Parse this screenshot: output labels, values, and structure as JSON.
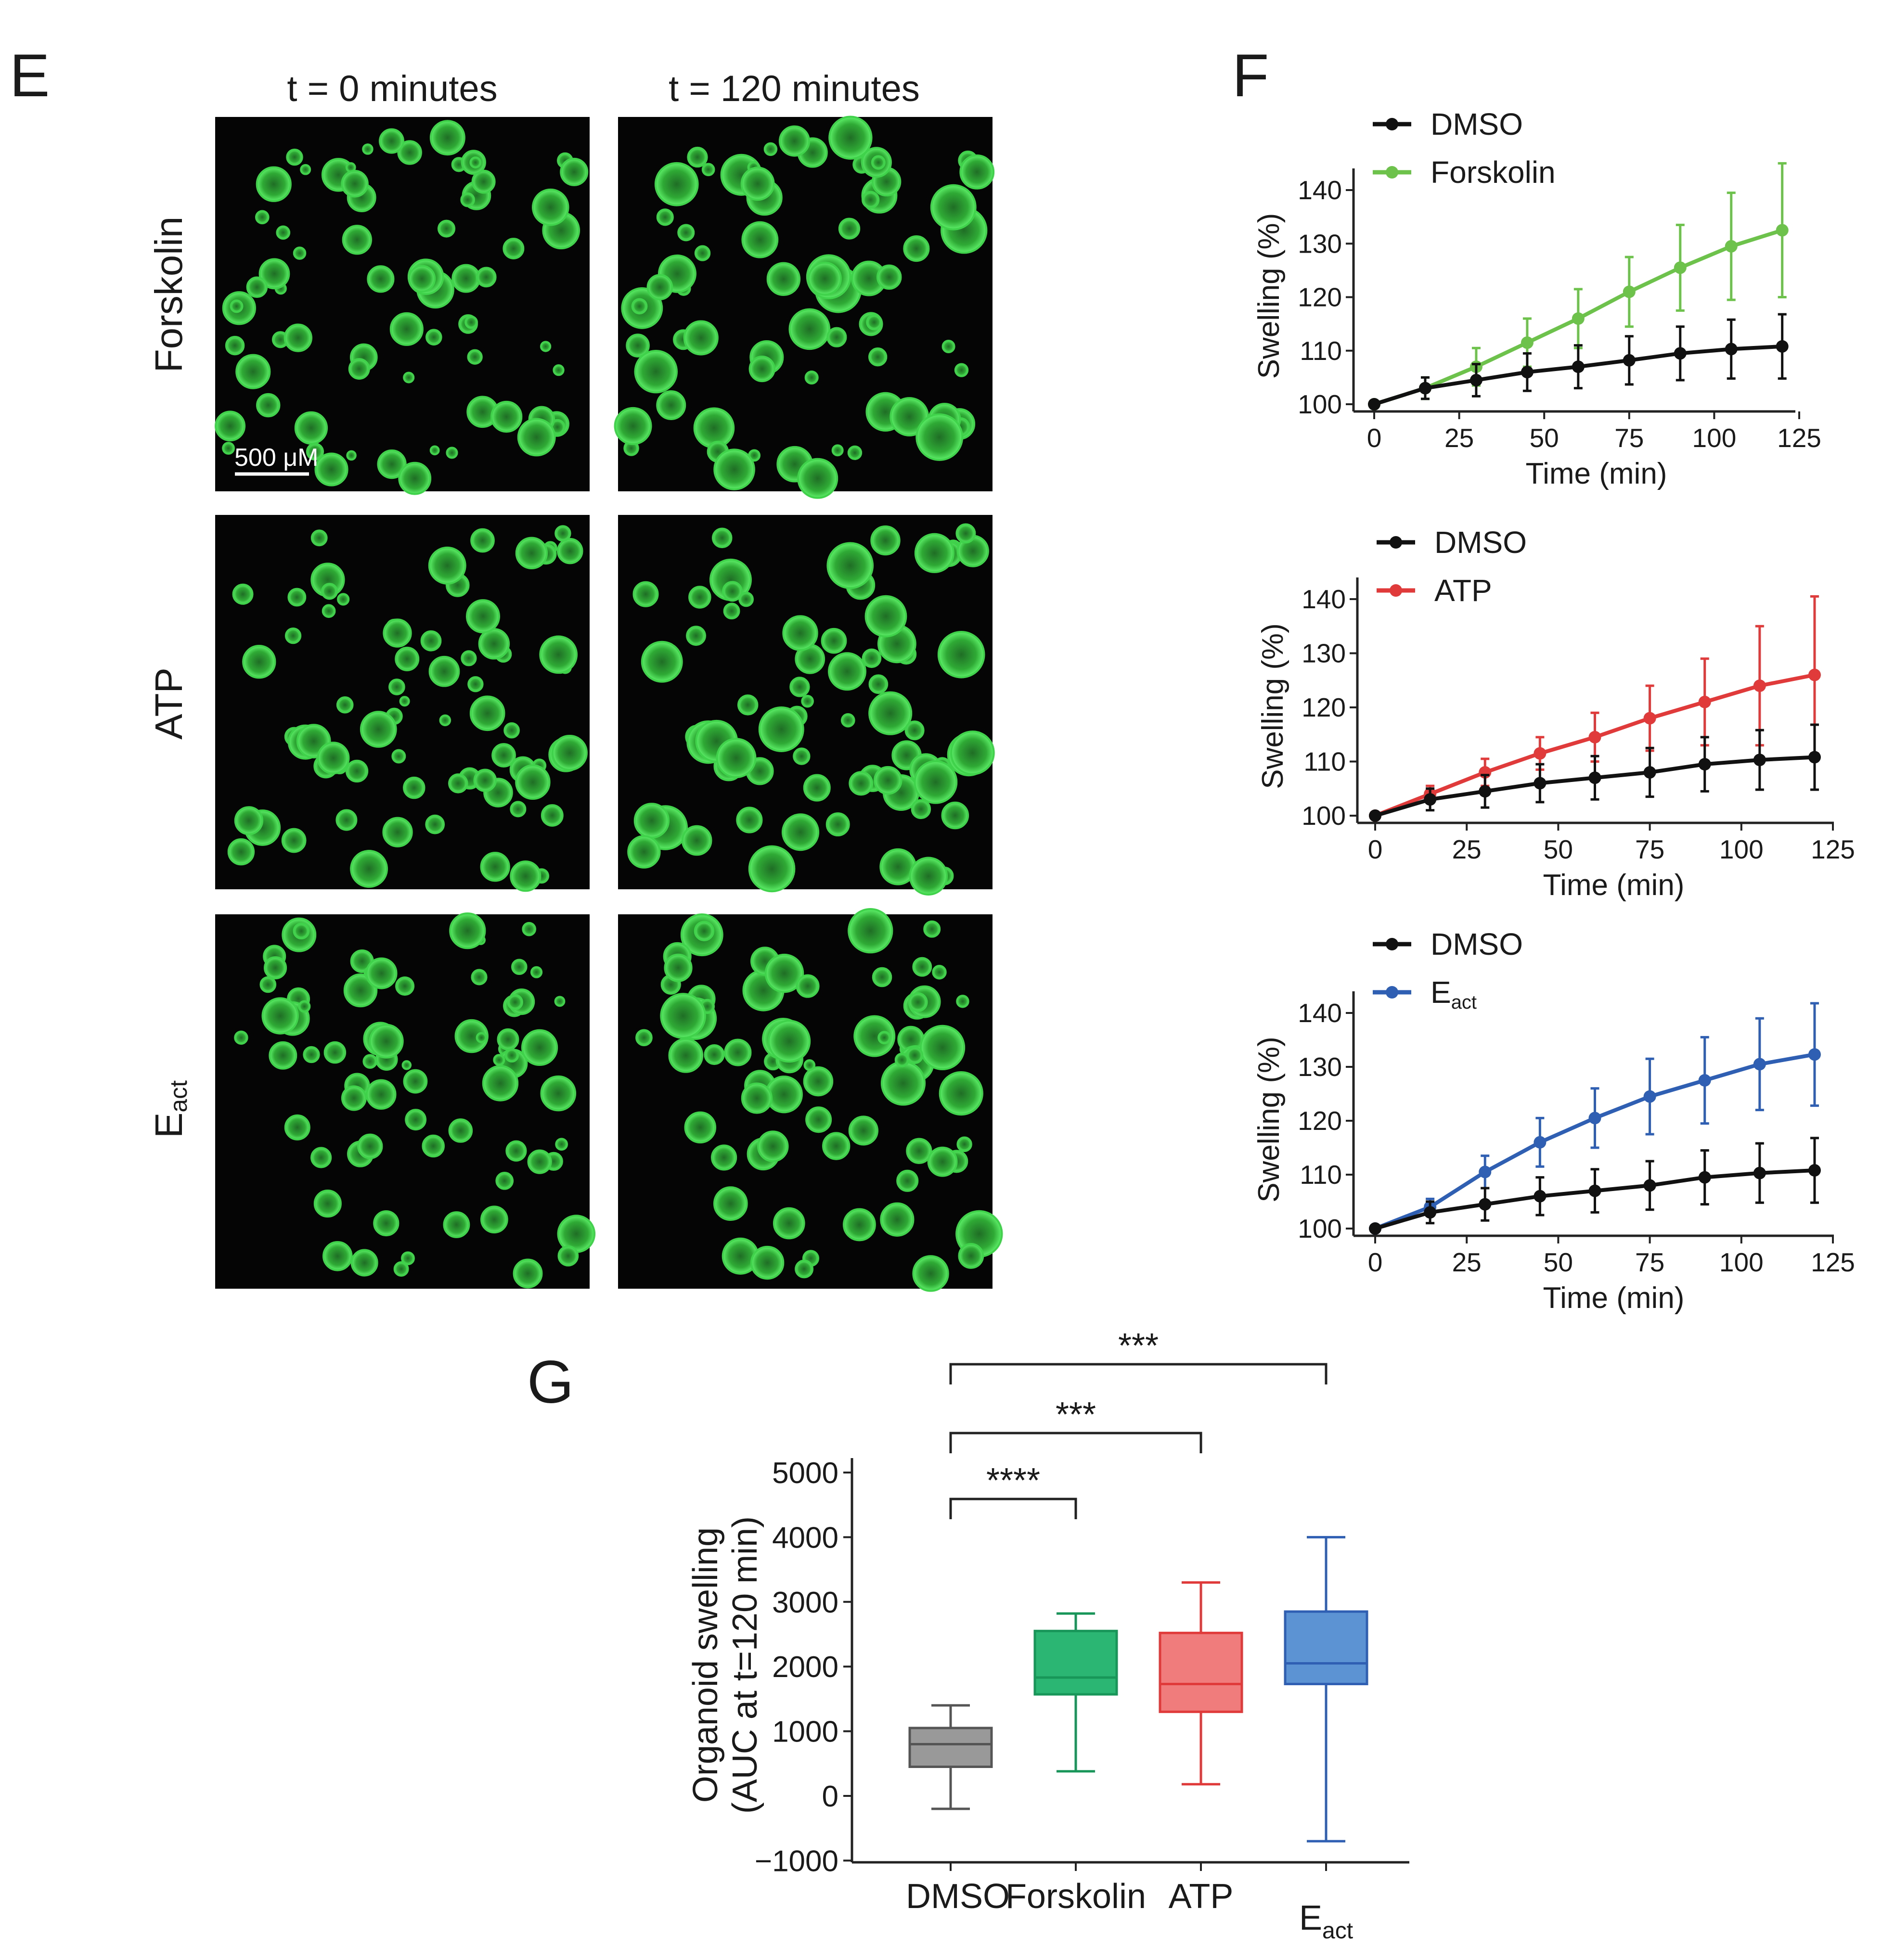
{
  "panels": {
    "E": {
      "letter": "E",
      "columns": [
        "t = 0 minutes",
        "t = 120 minutes"
      ],
      "rows": [
        {
          "main": "Forskolin",
          "sub": ""
        },
        {
          "main": "ATP",
          "sub": ""
        },
        {
          "main": "E",
          "sub": "act"
        }
      ],
      "scale_bar": "500 μM"
    },
    "F": {
      "letter": "F"
    },
    "G": {
      "letter": "G"
    }
  },
  "colors": {
    "DMSO": "#111111",
    "Forskolin": "#6cc24a",
    "ATP": "#e03a3a",
    "Eact": "#2f5fb3",
    "box_DMSO": "#999999",
    "box_Forskolin": "#2bb673",
    "box_ATP": "#f17c7c",
    "box_Eact": "#5b93d3",
    "edge_DMSO": "#555555",
    "edge_Forskolin": "#18965a",
    "edge_ATP": "#e03a3a",
    "edge_Eact": "#2f5fb3",
    "organoid": "#3fd24a"
  },
  "chart_data": [
    {
      "type": "line",
      "xlabel": "Time (min)",
      "ylabel": "Swelling (%)",
      "xlim": [
        0,
        125
      ],
      "ylim": [
        100,
        140
      ],
      "xticks": [
        0,
        25,
        50,
        75,
        100,
        125
      ],
      "yticks": [
        100,
        110,
        120,
        130,
        140
      ],
      "x": [
        0,
        15,
        30,
        45,
        60,
        75,
        90,
        105,
        120
      ],
      "legend_position": "top-left",
      "series": [
        {
          "name": "DMSO",
          "sub": "",
          "color_key": "DMSO",
          "values": [
            100,
            103,
            104.5,
            106,
            107,
            108.2,
            109.5,
            110.3,
            110.8
          ],
          "errors": [
            0.5,
            2,
            3,
            3.5,
            4,
            4.5,
            5,
            5.5,
            6
          ]
        },
        {
          "name": "Forskolin",
          "sub": "",
          "color_key": "Forskolin",
          "values": [
            100,
            103,
            107,
            111.5,
            116,
            121,
            125.5,
            129.5,
            132.5
          ],
          "errors": [
            0.5,
            2,
            3.5,
            4.5,
            5.5,
            6.5,
            8,
            10,
            12.5
          ]
        }
      ]
    },
    {
      "type": "line",
      "xlabel": "Time (min)",
      "ylabel": "Swelling (%)",
      "xlim": [
        0,
        125
      ],
      "ylim": [
        100,
        140
      ],
      "xticks": [
        0,
        25,
        50,
        75,
        100,
        125
      ],
      "yticks": [
        100,
        110,
        120,
        130,
        140
      ],
      "x": [
        0,
        15,
        30,
        45,
        60,
        75,
        90,
        105,
        120
      ],
      "legend_position": "top-left",
      "series": [
        {
          "name": "DMSO",
          "sub": "",
          "color_key": "DMSO",
          "values": [
            100,
            103,
            104.5,
            106,
            107,
            108,
            109.5,
            110.3,
            110.8
          ],
          "errors": [
            0.5,
            2,
            3,
            3.5,
            4,
            4.5,
            5,
            5.5,
            6
          ]
        },
        {
          "name": "ATP",
          "sub": "",
          "color_key": "ATP",
          "values": [
            100,
            104,
            108,
            111.5,
            114.5,
            118,
            121,
            124,
            126
          ],
          "errors": [
            0.5,
            1.5,
            2.5,
            3,
            4.5,
            6,
            8,
            11,
            14.5
          ]
        }
      ]
    },
    {
      "type": "line",
      "xlabel": "Time (min)",
      "ylabel": "Swelling (%)",
      "xlim": [
        0,
        125
      ],
      "ylim": [
        100,
        140
      ],
      "xticks": [
        0,
        25,
        50,
        75,
        100,
        125
      ],
      "yticks": [
        100,
        110,
        120,
        130,
        140
      ],
      "x": [
        0,
        15,
        30,
        45,
        60,
        75,
        90,
        105,
        120
      ],
      "legend_position": "top-left",
      "series": [
        {
          "name": "DMSO",
          "sub": "",
          "color_key": "DMSO",
          "values": [
            100,
            103,
            104.5,
            106,
            107,
            108,
            109.5,
            110.3,
            110.8
          ],
          "errors": [
            0.5,
            2,
            3,
            3.5,
            4,
            4.5,
            5,
            5.5,
            6
          ]
        },
        {
          "name": "E",
          "sub": "act",
          "color_key": "Eact",
          "values": [
            100,
            104,
            110.5,
            116,
            120.5,
            124.5,
            127.5,
            130.5,
            132.3
          ],
          "errors": [
            0.5,
            1.5,
            3,
            4.5,
            5.5,
            7,
            8,
            8.5,
            9.5
          ]
        }
      ]
    },
    {
      "type": "box",
      "ylabel_lines": [
        "Organoid swelling",
        "(AUC at t=120 min)"
      ],
      "ylim": [
        -1000,
        5000
      ],
      "yticks": [
        -1000,
        0,
        1000,
        2000,
        3000,
        4000,
        5000
      ],
      "ytick_labels": [
        "−1000",
        "0",
        "1000",
        "2000",
        "3000",
        "4000",
        "5000"
      ],
      "categories": [
        {
          "label": "DMSO",
          "sub": "",
          "color_key": "DMSO",
          "min": -200,
          "q1": 450,
          "median": 800,
          "q3": 1050,
          "max": 1400
        },
        {
          "label": "Forskolin",
          "sub": "",
          "color_key": "Forskolin",
          "min": 380,
          "q1": 1570,
          "median": 1830,
          "q3": 2550,
          "max": 2820
        },
        {
          "label": "ATP",
          "sub": "",
          "color_key": "ATP",
          "min": 180,
          "q1": 1300,
          "median": 1730,
          "q3": 2520,
          "max": 3300
        },
        {
          "label": "E",
          "sub": "act",
          "color_key": "Eact",
          "min": -700,
          "q1": 1730,
          "median": 2050,
          "q3": 2850,
          "max": 4000
        }
      ],
      "significance": [
        {
          "from": 0,
          "to": 1,
          "stars": "****",
          "level": 1
        },
        {
          "from": 0,
          "to": 2,
          "stars": "***",
          "level": 2
        },
        {
          "from": 0,
          "to": 3,
          "stars": "***",
          "level": 3
        }
      ]
    }
  ]
}
